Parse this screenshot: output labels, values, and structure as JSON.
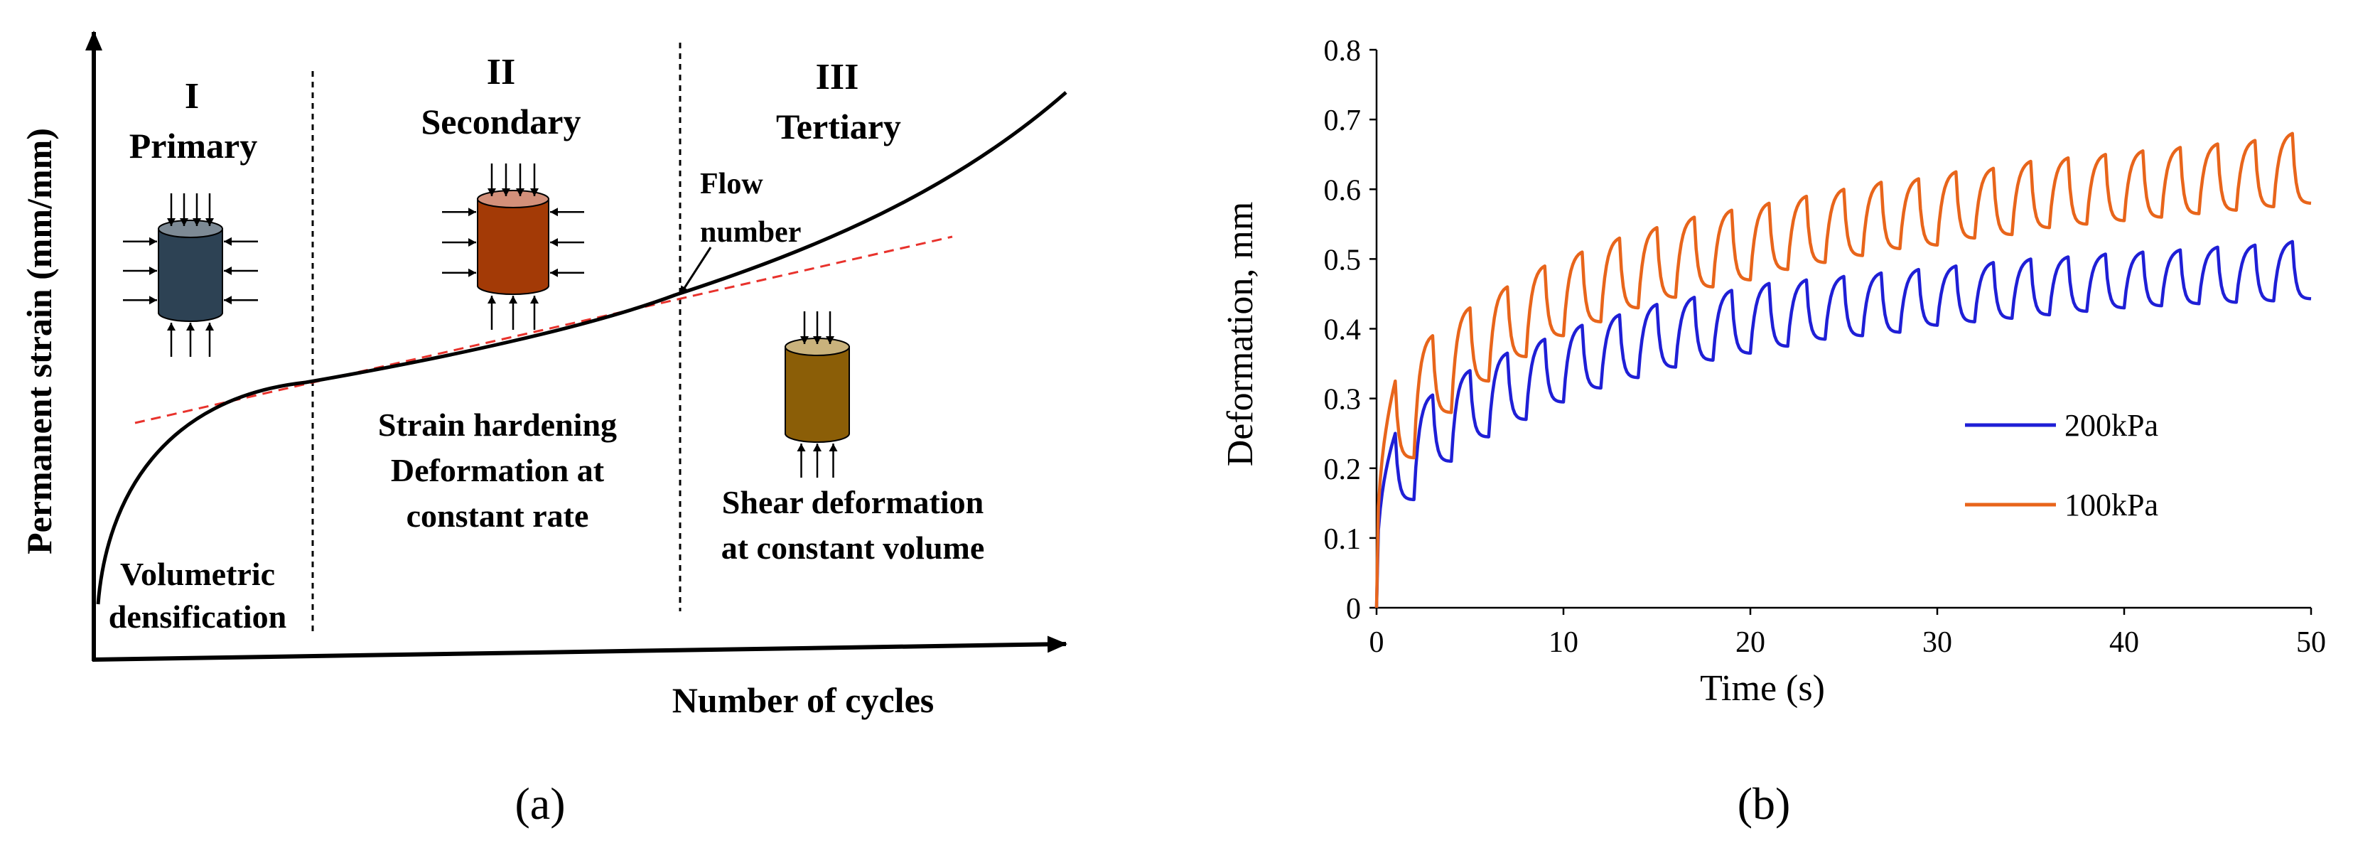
{
  "panel_labels": {
    "a": "(a)",
    "b": "(b)"
  },
  "diagram": {
    "x_axis_label": "Number of cycles",
    "y_axis_label": "Permanent strain (mm/mm)",
    "stages": [
      {
        "numeral": "I",
        "name": "Primary",
        "description": [
          "Volumetric",
          "densification"
        ]
      },
      {
        "numeral": "II",
        "name": "Secondary",
        "description": [
          "Strain hardening",
          "Deformation at",
          "constant rate"
        ]
      },
      {
        "numeral": "III",
        "name": "Tertiary",
        "description": [
          "Shear deformation",
          "at constant volume"
        ]
      }
    ],
    "flow_number_label": [
      "Flow",
      "number"
    ],
    "colors": {
      "primary_specimen": "#2d4254",
      "secondary_specimen": "#a33a06",
      "tertiary_specimen": "#8b5e07",
      "tangent_line": "#e8322c",
      "curve": "#000000"
    }
  },
  "chart_data": {
    "type": "line",
    "title": "",
    "xlabel": "Time (s)",
    "ylabel": "Deformation, mm",
    "xlim": [
      0,
      50
    ],
    "ylim": [
      0,
      0.8
    ],
    "x_ticks": [
      0,
      10,
      20,
      30,
      40,
      50
    ],
    "y_ticks": [
      0,
      0.1,
      0.2,
      0.3,
      0.4,
      0.5,
      0.6,
      0.7,
      0.8
    ],
    "x_tick_labels": [
      "0",
      "10",
      "20",
      "30",
      "40",
      "50"
    ],
    "y_tick_labels": [
      "0",
      "0.1",
      "0.2",
      "0.3",
      "0.4",
      "0.5",
      "0.6",
      "0.7",
      "0.8"
    ],
    "legend_position": "right",
    "series": [
      {
        "name": "200kPa",
        "color": "#1f1fd6",
        "cycle_period_s": 2,
        "peaks": [
          [
            1,
            0.25
          ],
          [
            3,
            0.305
          ],
          [
            5,
            0.34
          ],
          [
            7,
            0.365
          ],
          [
            9,
            0.385
          ],
          [
            11,
            0.405
          ],
          [
            13,
            0.42
          ],
          [
            15,
            0.435
          ],
          [
            17,
            0.445
          ],
          [
            19,
            0.455
          ],
          [
            21,
            0.465
          ],
          [
            23,
            0.47
          ],
          [
            25,
            0.475
          ],
          [
            27,
            0.48
          ],
          [
            29,
            0.485
          ],
          [
            31,
            0.49
          ],
          [
            33,
            0.495
          ],
          [
            35,
            0.5
          ],
          [
            37,
            0.503
          ],
          [
            39,
            0.507
          ],
          [
            41,
            0.51
          ],
          [
            43,
            0.513
          ],
          [
            45,
            0.517
          ],
          [
            47,
            0.52
          ],
          [
            49,
            0.525
          ]
        ],
        "troughs": [
          [
            2,
            0.155
          ],
          [
            4,
            0.21
          ],
          [
            6,
            0.245
          ],
          [
            8,
            0.27
          ],
          [
            10,
            0.295
          ],
          [
            12,
            0.315
          ],
          [
            14,
            0.33
          ],
          [
            16,
            0.345
          ],
          [
            18,
            0.355
          ],
          [
            20,
            0.365
          ],
          [
            22,
            0.375
          ],
          [
            24,
            0.385
          ],
          [
            26,
            0.39
          ],
          [
            28,
            0.395
          ],
          [
            30,
            0.405
          ],
          [
            32,
            0.41
          ],
          [
            34,
            0.415
          ],
          [
            36,
            0.42
          ],
          [
            38,
            0.425
          ],
          [
            40,
            0.43
          ],
          [
            42,
            0.433
          ],
          [
            44,
            0.436
          ],
          [
            46,
            0.438
          ],
          [
            48,
            0.44
          ],
          [
            50,
            0.443
          ]
        ]
      },
      {
        "name": "100kPa",
        "color": "#e8651b",
        "cycle_period_s": 2,
        "peaks": [
          [
            1,
            0.325
          ],
          [
            3,
            0.39
          ],
          [
            5,
            0.43
          ],
          [
            7,
            0.46
          ],
          [
            9,
            0.49
          ],
          [
            11,
            0.51
          ],
          [
            13,
            0.53
          ],
          [
            15,
            0.545
          ],
          [
            17,
            0.56
          ],
          [
            19,
            0.57
          ],
          [
            21,
            0.58
          ],
          [
            23,
            0.59
          ],
          [
            25,
            0.6
          ],
          [
            27,
            0.61
          ],
          [
            29,
            0.615
          ],
          [
            31,
            0.625
          ],
          [
            33,
            0.63
          ],
          [
            35,
            0.64
          ],
          [
            37,
            0.645
          ],
          [
            39,
            0.65
          ],
          [
            41,
            0.655
          ],
          [
            43,
            0.66
          ],
          [
            45,
            0.665
          ],
          [
            47,
            0.67
          ],
          [
            49,
            0.68
          ]
        ],
        "troughs": [
          [
            2,
            0.215
          ],
          [
            4,
            0.28
          ],
          [
            6,
            0.325
          ],
          [
            8,
            0.36
          ],
          [
            10,
            0.39
          ],
          [
            12,
            0.41
          ],
          [
            14,
            0.43
          ],
          [
            16,
            0.445
          ],
          [
            18,
            0.46
          ],
          [
            20,
            0.47
          ],
          [
            22,
            0.485
          ],
          [
            24,
            0.495
          ],
          [
            26,
            0.505
          ],
          [
            28,
            0.515
          ],
          [
            30,
            0.52
          ],
          [
            32,
            0.53
          ],
          [
            34,
            0.535
          ],
          [
            36,
            0.545
          ],
          [
            38,
            0.55
          ],
          [
            40,
            0.555
          ],
          [
            42,
            0.56
          ],
          [
            44,
            0.565
          ],
          [
            46,
            0.57
          ],
          [
            48,
            0.575
          ],
          [
            50,
            0.58
          ]
        ]
      }
    ]
  }
}
